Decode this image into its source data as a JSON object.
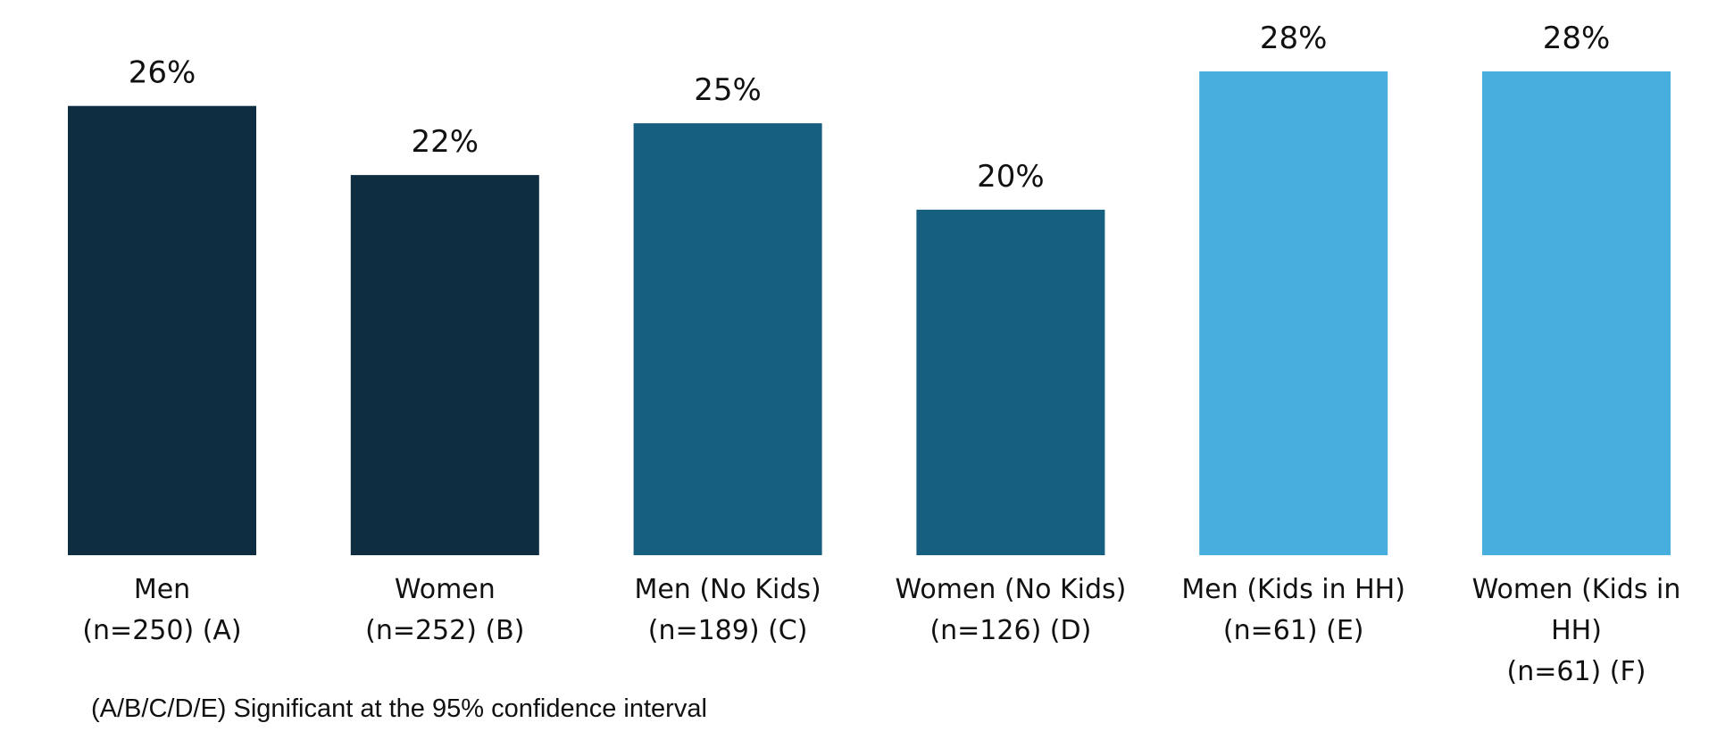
{
  "chart_data": {
    "type": "bar",
    "categories": [
      [
        "Men",
        "(n=250) (A)"
      ],
      [
        "Women",
        "(n=252) (B)"
      ],
      [
        "Men (No Kids)",
        "(n=189) (C)"
      ],
      [
        "Women (No Kids)",
        "(n=126) (D)"
      ],
      [
        "Men (Kids in HH)",
        "(n=61) (E)"
      ],
      [
        "Women (Kids in",
        "HH)",
        "(n=61) (F)"
      ]
    ],
    "values": [
      26,
      22,
      25,
      20,
      28,
      28
    ],
    "value_labels": [
      "26%",
      "22%",
      "25%",
      "20%",
      "28%",
      "28%"
    ],
    "colors": [
      "#0f2d40",
      "#0f2d40",
      "#175f80",
      "#175f80",
      "#48aede",
      "#48aede"
    ],
    "ylim": [
      0,
      28
    ],
    "grid": false,
    "title": "",
    "xlabel": "",
    "ylabel": ""
  },
  "footnote": "(A/B/C/D/E) Significant at the 95% confidence interval"
}
